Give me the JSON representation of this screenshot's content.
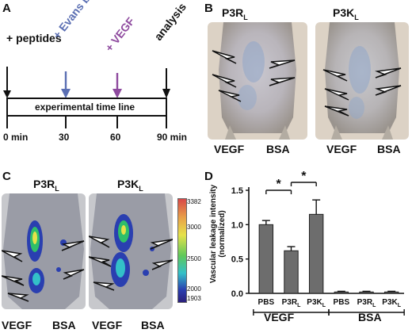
{
  "panel_a": {
    "letter": "A",
    "step_peptides": "+ peptides",
    "step_evans": "+ Evans blue",
    "step_vegf": "+ VEGF",
    "step_analysis": "analysis",
    "timeline_label": "experimental time line",
    "ticks": [
      "0 min",
      "30",
      "60",
      "90 min"
    ],
    "colors": {
      "evans": "#5b6fb3",
      "vegf": "#8e4a9e"
    }
  },
  "panel_b": {
    "letter": "B",
    "left_title_main": "P3R",
    "left_title_sub": "L",
    "right_title_main": "P3K",
    "right_title_sub": "L",
    "left_vegf": "VEGF",
    "left_bsa": "BSA",
    "right_vegf": "VEGF",
    "right_bsa": "BSA"
  },
  "panel_c": {
    "letter": "C",
    "left_title_main": "P3R",
    "left_title_sub": "L",
    "right_title_main": "P3K",
    "right_title_sub": "L",
    "left_vegf": "VEGF",
    "left_bsa": "BSA",
    "right_vegf": "VEGF",
    "right_bsa": "BSA",
    "colorbar_ticks": [
      "3382",
      "3000",
      "2500",
      "2000",
      "1903"
    ]
  },
  "panel_d": {
    "letter": "D",
    "sig_marker_1": "*",
    "sig_marker_2": "*",
    "group_vegf": "VEGF",
    "group_bsa": "BSA"
  },
  "chart_data": {
    "type": "bar",
    "ylabel": "Vascular leakage intensity (normalized)",
    "ylim": [
      0,
      1.5
    ],
    "yticks": [
      "0.0",
      "0.5",
      "1.0",
      "1.5"
    ],
    "categories": [
      {
        "main": "PBS",
        "sub": ""
      },
      {
        "main": "P3R",
        "sub": "L"
      },
      {
        "main": "P3K",
        "sub": "L"
      },
      {
        "main": "PBS",
        "sub": ""
      },
      {
        "main": "P3R",
        "sub": "L"
      },
      {
        "main": "P3K",
        "sub": "L"
      }
    ],
    "values": [
      1.0,
      0.62,
      1.15,
      0.02,
      0.02,
      0.02
    ],
    "errors": [
      0.06,
      0.06,
      0.21,
      0.01,
      0.01,
      0.01
    ],
    "groups": [
      "VEGF",
      "VEGF",
      "VEGF",
      "BSA",
      "BSA",
      "BSA"
    ],
    "bar_color": "#6d6d6d"
  }
}
